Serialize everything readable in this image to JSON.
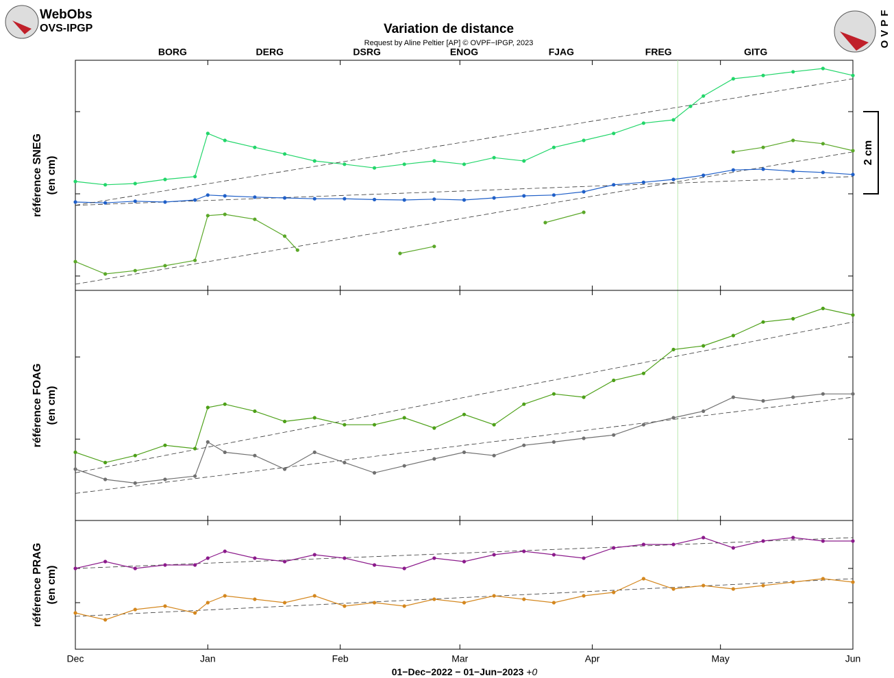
{
  "logo_left": {
    "line1": "WebObs",
    "line2": "OVS-IPGP"
  },
  "logo_right": "OVPF",
  "title": "Variation de distance",
  "subtitle": "Request by Aline Peltier [AP] © OVPF−IPGP, 2023",
  "x_label": {
    "text": "01−Dec−2022 − 01−Jun−2023",
    "offset": "+0"
  },
  "chart_data": [
    {
      "type": "line",
      "ylabel": "référence SNEG",
      "ylabel2": "(en cm)",
      "xlim": [
        0,
        182
      ],
      "xticks": [
        {
          "value": 0,
          "label": "Dec"
        },
        {
          "value": 31,
          "label": "Jan"
        },
        {
          "value": 62,
          "label": "Feb"
        },
        {
          "value": 90,
          "label": "Mar"
        },
        {
          "value": 121,
          "label": "Apr"
        },
        {
          "value": 151,
          "label": "May"
        },
        {
          "value": 182,
          "label": "Jun"
        }
      ],
      "ylim": [
        -2.35,
        3.25
      ],
      "yticks": [
        -2,
        0,
        2
      ],
      "event_x": 141,
      "scale_bar": {
        "value": 2,
        "label": "2 cm"
      },
      "series": [
        {
          "name": "BORG",
          "color": "#5ba829",
          "x": [
            0,
            7,
            14,
            21,
            28,
            31,
            35,
            42,
            49,
            52,
            69,
            76,
            84,
            101,
            110,
            119,
            147,
            154,
            161,
            168,
            175,
            182
          ],
          "values": [
            -1.65,
            -1.95,
            -1.87,
            -1.75,
            -1.62,
            -0.53,
            -0.5,
            -0.62,
            -1.03,
            -1.37,
            null,
            -1.45,
            -1.28,
            null,
            -0.7,
            -0.45,
            null,
            1.02,
            1.13,
            1.3,
            1.22,
            1.05
          ],
          "trend": [
            -2.2,
            1.02
          ]
        },
        {
          "name": "DERG",
          "color": "#1f5fc8",
          "x": [
            0,
            7,
            14,
            21,
            28,
            31,
            35,
            42,
            49,
            56,
            63,
            70,
            77,
            84,
            91,
            98,
            105,
            112,
            119,
            126,
            133,
            140,
            147,
            154,
            161,
            168,
            175,
            182
          ],
          "values": [
            -0.2,
            -0.22,
            -0.18,
            -0.2,
            -0.15,
            -0.03,
            -0.05,
            -0.08,
            -0.1,
            -0.12,
            -0.12,
            -0.14,
            -0.15,
            -0.13,
            -0.15,
            -0.1,
            -0.05,
            -0.03,
            0.05,
            0.22,
            0.28,
            0.35,
            0.45,
            0.58,
            0.6,
            0.55,
            0.52,
            0.47
          ],
          "trend": [
            -0.28,
            0.42
          ]
        },
        {
          "name": "DSRG",
          "color": "#22d66a",
          "x": [
            0,
            7,
            14,
            21,
            28,
            31,
            35,
            42,
            49,
            56,
            63,
            70,
            77,
            84,
            91,
            98,
            105,
            112,
            119,
            126,
            133,
            140,
            144,
            147,
            154,
            161,
            168,
            175,
            182
          ],
          "values": [
            0.3,
            0.22,
            0.25,
            0.35,
            0.42,
            1.47,
            1.3,
            1.13,
            0.97,
            0.8,
            0.72,
            0.63,
            0.72,
            0.8,
            0.72,
            0.88,
            0.8,
            1.13,
            1.3,
            1.47,
            1.72,
            1.8,
            2.13,
            2.38,
            2.8,
            2.88,
            2.97,
            3.05,
            2.88
          ],
          "trend": [
            -0.28,
            2.8
          ]
        }
      ]
    },
    {
      "type": "line",
      "ylabel": "référence FOAG",
      "ylabel2": "(en cm)",
      "xlim": [
        0,
        182
      ],
      "ylim": [
        -1.98,
        3.62
      ],
      "yticks": [
        0,
        2
      ],
      "series": [
        {
          "name": "ENOG",
          "color": "#707070",
          "x": [
            0,
            7,
            14,
            21,
            28,
            31,
            35,
            42,
            49,
            56,
            63,
            70,
            77,
            84,
            91,
            98,
            105,
            112,
            119,
            126,
            133,
            140,
            147,
            154,
            161,
            168,
            175,
            182
          ],
          "values": [
            -0.73,
            -0.98,
            -1.07,
            -0.98,
            -0.9,
            -0.07,
            -0.32,
            -0.4,
            -0.73,
            -0.32,
            -0.57,
            -0.82,
            -0.65,
            -0.48,
            -0.32,
            -0.4,
            -0.15,
            -0.07,
            0.02,
            0.1,
            0.35,
            0.52,
            0.68,
            1.02,
            0.93,
            1.02,
            1.1,
            1.1
          ],
          "trend": [
            -1.32,
            1.02
          ]
        },
        {
          "name": "FJAG",
          "color": "#4da018",
          "x": [
            0,
            7,
            14,
            21,
            28,
            31,
            35,
            42,
            49,
            56,
            63,
            70,
            77,
            84,
            91,
            98,
            105,
            112,
            119,
            126,
            133,
            140,
            147,
            154,
            161,
            168,
            175,
            182
          ],
          "values": [
            -0.32,
            -0.57,
            -0.4,
            -0.15,
            -0.23,
            0.77,
            0.85,
            0.68,
            0.43,
            0.52,
            0.35,
            0.35,
            0.52,
            0.27,
            0.6,
            0.35,
            0.85,
            1.1,
            1.02,
            1.43,
            1.6,
            2.18,
            2.27,
            2.52,
            2.85,
            2.93,
            3.18,
            3.02
          ],
          "trend": [
            -0.82,
            2.85
          ]
        }
      ]
    },
    {
      "type": "line",
      "ylabel": "référence PRAG",
      "ylabel2": "(en cm)",
      "xlim": [
        0,
        182
      ],
      "ylim": [
        -1.36,
        2.4
      ],
      "yticks": [
        0,
        1
      ],
      "series": [
        {
          "name": "FREG",
          "color": "#d4871e",
          "x": [
            0,
            7,
            14,
            21,
            28,
            31,
            35,
            42,
            49,
            56,
            63,
            70,
            77,
            84,
            91,
            98,
            105,
            112,
            119,
            126,
            133,
            140,
            147,
            154,
            161,
            168,
            175,
            182
          ],
          "values": [
            -0.3,
            -0.5,
            -0.2,
            -0.1,
            -0.3,
            0,
            0.2,
            0.1,
            0,
            0.2,
            -0.1,
            0,
            -0.1,
            0.1,
            0,
            0.2,
            0.1,
            0,
            0.2,
            0.3,
            0.7,
            0.4,
            0.5,
            0.4,
            0.5,
            0.6,
            0.7,
            0.6
          ],
          "trend": [
            -0.4,
            0.7
          ]
        },
        {
          "name": "GITG",
          "color": "#8b1a8b",
          "x": [
            0,
            7,
            14,
            21,
            28,
            31,
            35,
            42,
            49,
            56,
            63,
            70,
            77,
            84,
            91,
            98,
            105,
            112,
            119,
            126,
            133,
            140,
            147,
            154,
            161,
            168,
            175,
            182
          ],
          "values": [
            1.0,
            1.2,
            1.0,
            1.1,
            1.1,
            1.3,
            1.5,
            1.3,
            1.2,
            1.4,
            1.3,
            1.1,
            1.0,
            1.3,
            1.2,
            1.4,
            1.5,
            1.4,
            1.3,
            1.6,
            1.7,
            1.7,
            1.9,
            1.6,
            1.8,
            1.9,
            1.8,
            1.8
          ],
          "trend": [
            1.0,
            1.9
          ]
        }
      ]
    }
  ]
}
